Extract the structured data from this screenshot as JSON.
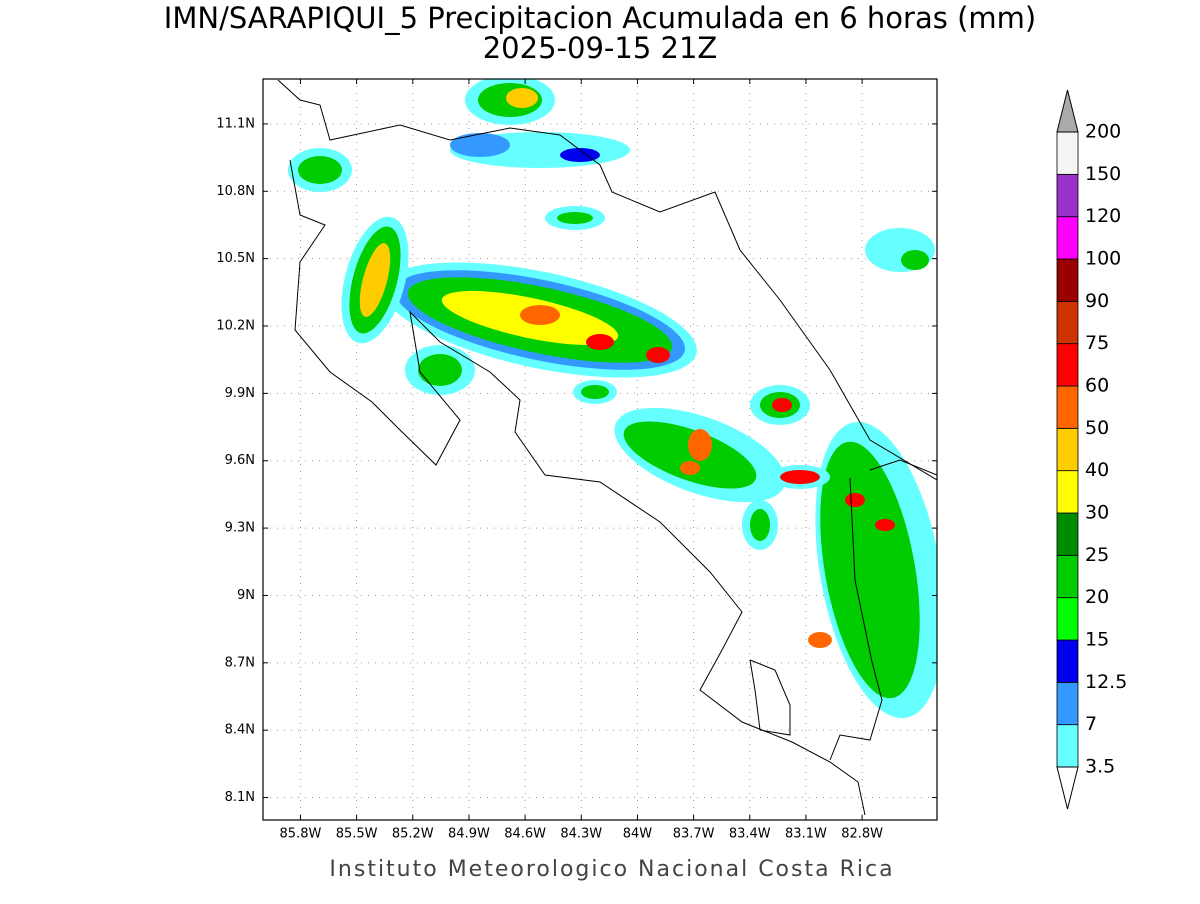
{
  "title": "IMN/SARAPIQUI_5 Precipitacion Acumulada en 6 horas (mm)",
  "subtitle": "2025-09-15 21Z",
  "footer": "Instituto Meteorologico Nacional Costa Rica",
  "map": {
    "xlim": [
      -86.0,
      -82.4
    ],
    "ylim": [
      8.0,
      11.3
    ],
    "xticks": [
      {
        "value": -85.8,
        "label": "85.8W"
      },
      {
        "value": -85.5,
        "label": "85.5W"
      },
      {
        "value": -85.2,
        "label": "85.2W"
      },
      {
        "value": -84.9,
        "label": "84.9W"
      },
      {
        "value": -84.6,
        "label": "84.6W"
      },
      {
        "value": -84.3,
        "label": "84.3W"
      },
      {
        "value": -84.0,
        "label": "84W"
      },
      {
        "value": -83.7,
        "label": "83.7W"
      },
      {
        "value": -83.4,
        "label": "83.4W"
      },
      {
        "value": -83.1,
        "label": "83.1W"
      },
      {
        "value": -82.8,
        "label": "82.8W"
      }
    ],
    "yticks": [
      {
        "value": 11.1,
        "label": "11.1N"
      },
      {
        "value": 10.8,
        "label": "10.8N"
      },
      {
        "value": 10.5,
        "label": "10.5N"
      },
      {
        "value": 10.2,
        "label": "10.2N"
      },
      {
        "value": 9.9,
        "label": "9.9N"
      },
      {
        "value": 9.6,
        "label": "9.6N"
      },
      {
        "value": 9.3,
        "label": "9.3N"
      },
      {
        "value": 9.0,
        "label": "9N"
      },
      {
        "value": 8.7,
        "label": "8.7N"
      },
      {
        "value": 8.4,
        "label": "8.4N"
      },
      {
        "value": 8.1,
        "label": "8.1N"
      }
    ],
    "grid": true
  },
  "colorbar": {
    "levels": [
      3.5,
      7,
      12.5,
      15,
      20,
      25,
      30,
      40,
      50,
      60,
      75,
      90,
      100,
      120,
      150,
      200
    ],
    "colors": [
      "#66ffff",
      "#3399ff",
      "#0000ee",
      "#00ff00",
      "#00cc00",
      "#008c00",
      "#ffff00",
      "#ffcc00",
      "#ff6600",
      "#ff0000",
      "#cc3300",
      "#990000",
      "#ff00ff",
      "#9933cc",
      "#f5f5f5"
    ],
    "under_color": "#ffffff",
    "over_color": "#aaaaaa"
  }
}
